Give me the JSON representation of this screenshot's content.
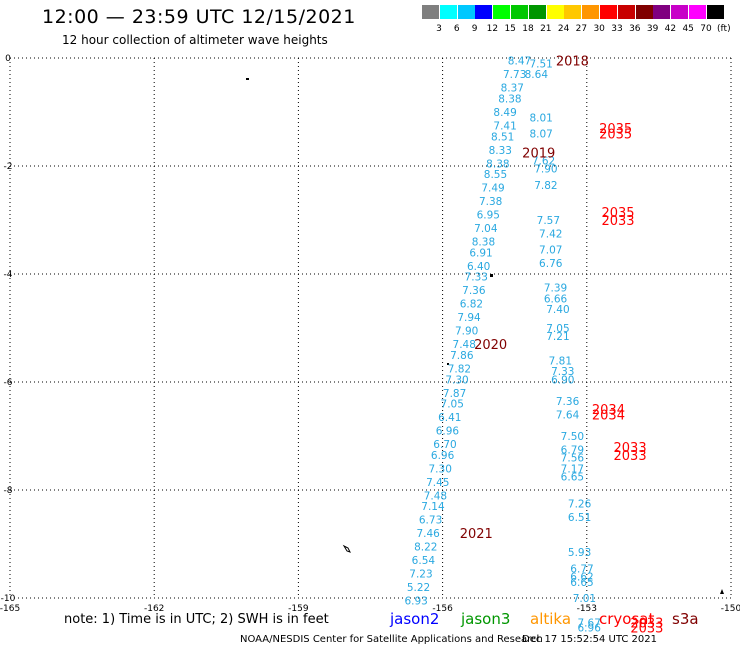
{
  "header": {
    "title": "12:00 — 23:59 UTC 12/15/2021",
    "subtitle": "12 hour collection of altimeter wave heights"
  },
  "legend": {
    "labels": [
      "3",
      "6",
      "9",
      "12",
      "15",
      "18",
      "21",
      "24",
      "27",
      "30",
      "33",
      "36",
      "39",
      "42",
      "45",
      "70",
      "(ft)"
    ],
    "colors": [
      "#7f7f7f",
      "#00ffff",
      "#00c8ff",
      "#0000ff",
      "#00ff00",
      "#00c800",
      "#009600",
      "#ffff00",
      "#ffc800",
      "#ff9600",
      "#ff0000",
      "#c80000",
      "#800000",
      "#800080",
      "#c800c8",
      "#ff00ff",
      "#000000"
    ]
  },
  "axes": {
    "x_ticks": [
      "-165",
      "-162",
      "-159",
      "-156",
      "-153",
      "-150"
    ],
    "y_ticks": [
      "0",
      "-2",
      "-4",
      "-6",
      "-8",
      "-10"
    ]
  },
  "map_data": {
    "track_a": [
      {
        "v": "8.47",
        "lon": -154.4,
        "lat": -0.05
      },
      {
        "v": "7.73",
        "lon": -154.5,
        "lat": -0.3
      },
      {
        "v": "8.37",
        "lon": -154.55,
        "lat": -0.55
      },
      {
        "v": "8.38",
        "lon": -154.6,
        "lat": -0.75
      },
      {
        "v": "8.49",
        "lon": -154.7,
        "lat": -1.0
      },
      {
        "v": "7.41",
        "lon": -154.7,
        "lat": -1.25
      },
      {
        "v": "8.51",
        "lon": -154.75,
        "lat": -1.45
      },
      {
        "v": "8.33",
        "lon": -154.8,
        "lat": -1.7
      },
      {
        "v": "8.38",
        "lon": -154.85,
        "lat": -1.95
      },
      {
        "v": "8.55",
        "lon": -154.9,
        "lat": -2.15
      },
      {
        "v": "7.49",
        "lon": -154.95,
        "lat": -2.4
      },
      {
        "v": "7.38",
        "lon": -155.0,
        "lat": -2.65
      },
      {
        "v": "6.95",
        "lon": -155.05,
        "lat": -2.9
      },
      {
        "v": "7.04",
        "lon": -155.1,
        "lat": -3.15
      },
      {
        "v": "8.38",
        "lon": -155.15,
        "lat": -3.4
      },
      {
        "v": "6.91",
        "lon": -155.2,
        "lat": -3.6
      },
      {
        "v": "6.40",
        "lon": -155.25,
        "lat": -3.85
      },
      {
        "v": "7.33",
        "lon": -155.3,
        "lat": -4.05
      },
      {
        "v": "7.36",
        "lon": -155.35,
        "lat": -4.3
      },
      {
        "v": "6.82",
        "lon": -155.4,
        "lat": -4.55
      },
      {
        "v": "7.94",
        "lon": -155.45,
        "lat": -4.8
      },
      {
        "v": "7.90",
        "lon": -155.5,
        "lat": -5.05
      },
      {
        "v": "7.48",
        "lon": -155.55,
        "lat": -5.3
      },
      {
        "v": "7.86",
        "lon": -155.6,
        "lat": -5.5
      },
      {
        "v": "7.82",
        "lon": -155.65,
        "lat": -5.75
      },
      {
        "v": "7.30",
        "lon": -155.7,
        "lat": -5.95
      },
      {
        "v": "7.87",
        "lon": -155.75,
        "lat": -6.2
      },
      {
        "v": "7.05",
        "lon": -155.8,
        "lat": -6.4
      },
      {
        "v": "6.41",
        "lon": -155.85,
        "lat": -6.65
      },
      {
        "v": "6.96",
        "lon": -155.9,
        "lat": -6.9
      },
      {
        "v": "6.70",
        "lon": -155.95,
        "lat": -7.15
      },
      {
        "v": "6.96",
        "lon": -156.0,
        "lat": -7.35
      },
      {
        "v": "7.30",
        "lon": -156.05,
        "lat": -7.6
      },
      {
        "v": "7.45",
        "lon": -156.1,
        "lat": -7.85
      },
      {
        "v": "7.48",
        "lon": -156.15,
        "lat": -8.1
      },
      {
        "v": "7.14",
        "lon": -156.2,
        "lat": -8.3
      },
      {
        "v": "6.73",
        "lon": -156.25,
        "lat": -8.55
      },
      {
        "v": "7.46",
        "lon": -156.3,
        "lat": -8.8
      },
      {
        "v": "8.22",
        "lon": -156.35,
        "lat": -9.05
      },
      {
        "v": "6.54",
        "lon": -156.4,
        "lat": -9.3
      },
      {
        "v": "7.23",
        "lon": -156.45,
        "lat": -9.55
      },
      {
        "v": "5.22",
        "lon": -156.5,
        "lat": -9.8
      },
      {
        "v": "6.93",
        "lon": -156.55,
        "lat": -10.05
      }
    ],
    "track_b": [
      {
        "v": "7.51",
        "lon": -153.95,
        "lat": -0.1
      },
      {
        "v": "8.64",
        "lon": -154.05,
        "lat": -0.3
      },
      {
        "v": "8.01",
        "lon": -153.95,
        "lat": -1.1
      },
      {
        "v": "8.07",
        "lon": -153.95,
        "lat": -1.4
      },
      {
        "v": "7.62",
        "lon": -153.9,
        "lat": -1.9
      },
      {
        "v": "7.90",
        "lon": -153.85,
        "lat": -2.05
      },
      {
        "v": "7.82",
        "lon": -153.85,
        "lat": -2.35
      },
      {
        "v": "7.57",
        "lon": -153.8,
        "lat": -3.0
      },
      {
        "v": "7.42",
        "lon": -153.75,
        "lat": -3.25
      },
      {
        "v": "7.07",
        "lon": -153.75,
        "lat": -3.55
      },
      {
        "v": "6.76",
        "lon": -153.75,
        "lat": -3.8
      },
      {
        "v": "7.39",
        "lon": -153.65,
        "lat": -4.25
      },
      {
        "v": "6.66",
        "lon": -153.65,
        "lat": -4.45
      },
      {
        "v": "7.40",
        "lon": -153.6,
        "lat": -4.65
      },
      {
        "v": "7.05",
        "lon": -153.6,
        "lat": -5.0
      },
      {
        "v": "7.21",
        "lon": -153.6,
        "lat": -5.15
      },
      {
        "v": "7.81",
        "lon": -153.55,
        "lat": -5.6
      },
      {
        "v": "7.33",
        "lon": -153.5,
        "lat": -5.8
      },
      {
        "v": "6.90",
        "lon": -153.5,
        "lat": -5.95
      },
      {
        "v": "7.36",
        "lon": -153.4,
        "lat": -6.35
      },
      {
        "v": "7.64",
        "lon": -153.4,
        "lat": -6.6
      },
      {
        "v": "7.50",
        "lon": -153.3,
        "lat": -7.0
      },
      {
        "v": "6.79",
        "lon": -153.3,
        "lat": -7.25
      },
      {
        "v": "7.56",
        "lon": -153.3,
        "lat": -7.4
      },
      {
        "v": "7.17",
        "lon": -153.3,
        "lat": -7.6
      },
      {
        "v": "6.65",
        "lon": -153.3,
        "lat": -7.75
      },
      {
        "v": "7.26",
        "lon": -153.15,
        "lat": -8.25
      },
      {
        "v": "6.51",
        "lon": -153.15,
        "lat": -8.5
      },
      {
        "v": "5.93",
        "lon": -153.15,
        "lat": -9.15
      },
      {
        "v": "6.77",
        "lon": -153.1,
        "lat": -9.45
      },
      {
        "v": "6.62",
        "lon": -153.1,
        "lat": -9.6
      },
      {
        "v": "6.65",
        "lon": -153.1,
        "lat": -9.7
      },
      {
        "v": "7.01",
        "lon": -153.05,
        "lat": -10.0
      },
      {
        "v": "7.67",
        "lon": -152.95,
        "lat": -10.45
      },
      {
        "v": "6.96",
        "lon": -152.95,
        "lat": -10.55
      }
    ],
    "times": [
      {
        "t": "2018",
        "lon": -153.3,
        "lat": -0.05,
        "c": "#800000"
      },
      {
        "t": "2019",
        "lon": -154.0,
        "lat": -1.75,
        "c": "#800000"
      },
      {
        "t": "2020",
        "lon": -155.0,
        "lat": -5.3,
        "c": "#800000"
      },
      {
        "t": "2021",
        "lon": -155.3,
        "lat": -8.8,
        "c": "#800000"
      },
      {
        "t": "2035",
        "lon": -152.4,
        "lat": -1.3,
        "c": "#ff0000"
      },
      {
        "t": "2035",
        "lon": -152.4,
        "lat": -1.4,
        "c": "#ff0000"
      },
      {
        "t": "2035",
        "lon": -152.35,
        "lat": -2.85,
        "c": "#ff0000"
      },
      {
        "t": "2033",
        "lon": -152.35,
        "lat": -3.0,
        "c": "#ff0000"
      },
      {
        "t": "2034",
        "lon": -152.55,
        "lat": -6.5,
        "c": "#ff0000"
      },
      {
        "t": "2034",
        "lon": -152.55,
        "lat": -6.6,
        "c": "#ff0000"
      },
      {
        "t": "2033",
        "lon": -152.1,
        "lat": -7.2,
        "c": "#ff0000"
      },
      {
        "t": "2033",
        "lon": -152.1,
        "lat": -7.35,
        "c": "#ff0000"
      },
      {
        "t": "2033",
        "lon": -151.75,
        "lat": -10.45,
        "c": "#ff0000"
      },
      {
        "t": "2033",
        "lon": -151.75,
        "lat": -10.55,
        "c": "#ff0000"
      }
    ]
  },
  "satellites": [
    {
      "name": "jason2",
      "color": "#0000ff"
    },
    {
      "name": "jason3",
      "color": "#009600"
    },
    {
      "name": "altika",
      "color": "#ff9600"
    },
    {
      "name": "cryosat",
      "color": "#ff0000"
    },
    {
      "name": "s3a",
      "color": "#800000"
    }
  ],
  "note": "note: 1) Time is in UTC; 2) SWH is in feet",
  "footer": "NOAA/NESDIS Center for Satellite Applications and Research",
  "stamp": "Dec 17 15:52:54 UTC 2021"
}
